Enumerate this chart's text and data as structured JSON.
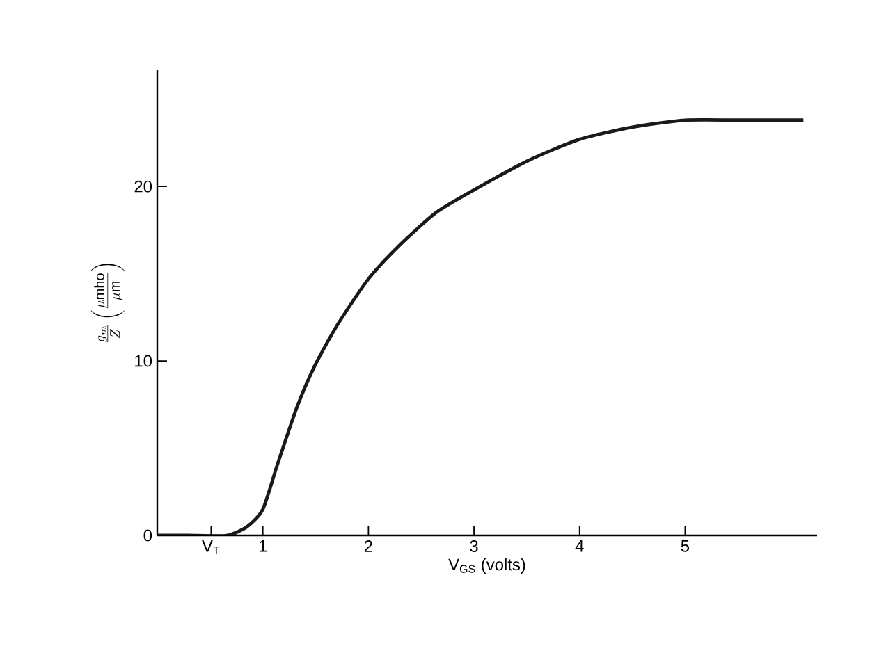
{
  "chart_data": {
    "type": "line",
    "xlabel": "V$_{GS}$ (volts)",
    "ylabel": "\\frac{g_{m}}{Z}\\left(\\frac{\\mu\\mathrm{mho}}{\\mu\\mathrm{m}}\\right)",
    "x": [
      0,
      0.3,
      0.66,
      0.85,
      1,
      1.14,
      1.32,
      1.49,
      1.71,
      2,
      2.29,
      2.64,
      3,
      3.52,
      4,
      4.5,
      5,
      5.5,
      6.12
    ],
    "series": [
      {
        "color": "#1a1a1a",
        "values": [
          0,
          0,
          0,
          0.5,
          1.5,
          4.1,
          7.3,
          9.7,
          12.1,
          14.7,
          16.6,
          18.5,
          19.8,
          21.5,
          22.7,
          23.4,
          23.8,
          23.8,
          23.8
        ]
      }
    ],
    "xlim": [
      0,
      6.25
    ],
    "ylim": [
      0,
      26.7
    ],
    "xticks": [
      {
        "value": 0.51,
        "label": "V$_{T}$"
      },
      1,
      2,
      3,
      4,
      5
    ],
    "yticks": [
      0,
      10,
      20
    ]
  }
}
